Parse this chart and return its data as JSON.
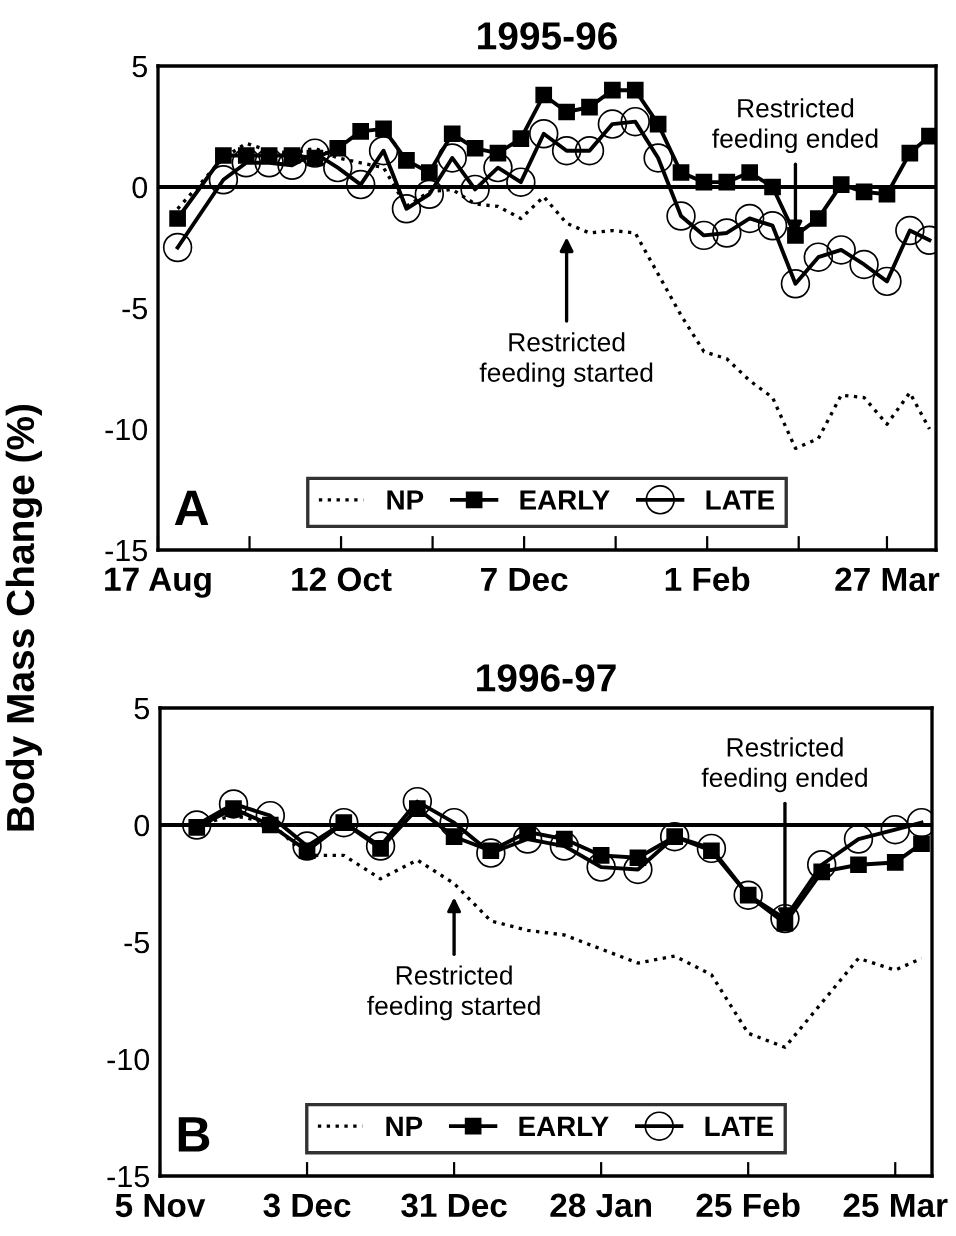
{
  "chart_data": [
    {
      "type": "line",
      "title": "1995-96",
      "ylabel": "Body Mass Change (%)",
      "x": [
        "1995-08-23",
        "1995-09-06",
        "1995-09-13",
        "1995-09-20",
        "1995-09-27",
        "1995-10-04",
        "1995-10-11",
        "1995-10-18",
        "1995-10-25",
        "1995-11-01",
        "1995-11-08",
        "1995-11-15",
        "1995-11-22",
        "1995-11-29",
        "1995-12-06",
        "1995-12-13",
        "1995-12-20",
        "1995-12-27",
        "1996-01-03",
        "1996-01-10",
        "1996-01-17",
        "1996-01-24",
        "1996-01-31",
        "1996-02-07",
        "1996-02-14",
        "1996-02-21",
        "1996-02-28",
        "1996-03-06",
        "1996-03-13",
        "1996-03-20",
        "1996-03-27",
        "1996-04-03",
        "1996-04-09"
      ],
      "series": [
        {
          "name": "NP",
          "color": "#000000",
          "line_style": "dotted",
          "marker": "none",
          "values": [
            -0.9,
            1.2,
            1.8,
            1.5,
            1.4,
            1.6,
            1.2,
            1.0,
            0.8,
            -0.8,
            -0.2,
            -0.1,
            -0.7,
            -0.8,
            -1.3,
            -0.4,
            -1.5,
            -1.9,
            -1.8,
            -1.9,
            -3.6,
            -5.3,
            -6.8,
            -7.1,
            -8.0,
            -8.7,
            -10.8,
            -10.4,
            -8.6,
            -8.7,
            -9.8,
            -8.5,
            -10.0
          ]
        },
        {
          "name": "EARLY",
          "color": "#000000",
          "line_style": "solid",
          "marker": "square",
          "values": [
            -1.3,
            1.3,
            1.3,
            1.3,
            1.3,
            1.2,
            1.6,
            2.3,
            2.4,
            1.1,
            0.6,
            2.2,
            1.6,
            1.4,
            2.0,
            3.8,
            3.1,
            3.3,
            4.0,
            4.0,
            2.6,
            0.6,
            0.2,
            0.2,
            0.6,
            0,
            -2.0,
            -1.3,
            0.1,
            -0.2,
            -0.3,
            1.4,
            2.1
          ]
        },
        {
          "name": "LATE",
          "color": "#000000",
          "line_style": "solid",
          "marker": "circle",
          "values": [
            -2.5,
            0.3,
            1.0,
            1.0,
            0.9,
            1.4,
            0.8,
            0.1,
            1.5,
            -0.9,
            -0.3,
            1.2,
            -0.1,
            0.8,
            0.2,
            2.2,
            1.5,
            1.5,
            2.6,
            2.7,
            1.2,
            -1.2,
            -2.0,
            -1.9,
            -1.3,
            -1.6,
            -4.0,
            -2.9,
            -2.6,
            -3.2,
            -3.9,
            -1.8,
            -2.2
          ]
        }
      ],
      "xlim": [
        "1995-08-17",
        "1996-04-11"
      ],
      "xticks": [
        {
          "value": "1995-08-17",
          "label": "17 Aug"
        },
        {
          "value": "1995-09-14",
          "label": null
        },
        {
          "value": "1995-10-12",
          "label": "12 Oct"
        },
        {
          "value": "1995-11-09",
          "label": null
        },
        {
          "value": "1995-12-07",
          "label": "7 Dec"
        },
        {
          "value": "1996-01-04",
          "label": null
        },
        {
          "value": "1996-02-01",
          "label": "1 Feb"
        },
        {
          "value": "1996-02-29",
          "label": null
        },
        {
          "value": "1996-03-27",
          "label": "27 Mar"
        }
      ],
      "ylim": [
        -15,
        5
      ],
      "yticks": [
        -15,
        -10,
        -5,
        0,
        5
      ],
      "ref_lines": [
        {
          "axis": "y",
          "value": 0
        }
      ],
      "annotations": [
        {
          "text": "Restricted\nfeeding started",
          "x": "1995-12-20",
          "y": -1.5
        },
        {
          "text": "Restricted\nfeeding ended",
          "x": "1996-02-28",
          "y": -2.0
        },
        "A"
      ],
      "legend": "bottom",
      "grid": false
    },
    {
      "type": "line",
      "title": "1996-97",
      "x": [
        "1996-11-12",
        "1996-11-19",
        "1996-11-26",
        "1996-12-03",
        "1996-12-10",
        "1996-12-17",
        "1996-12-24",
        "1996-12-31",
        "1997-01-07",
        "1997-01-14",
        "1997-01-21",
        "1997-01-28",
        "1997-02-04",
        "1997-02-11",
        "1997-02-18",
        "1997-02-25",
        "1997-03-04",
        "1997-03-11",
        "1997-03-18",
        "1997-03-25",
        "1997-03-30"
      ],
      "series": [
        {
          "name": "NP",
          "color": "#000000",
          "line_style": "dotted",
          "marker": "none",
          "values": [
            0,
            0.4,
            0.1,
            -1.3,
            -1.3,
            -2.3,
            -1.5,
            -2.5,
            -4.1,
            -4.5,
            -4.7,
            -5.3,
            -5.9,
            -5.6,
            -6.4,
            -8.9,
            -9.5,
            -7.6,
            -5.7,
            -6.2,
            -5.7
          ]
        },
        {
          "name": "EARLY",
          "color": "#000000",
          "line_style": "solid",
          "marker": "square",
          "values": [
            -0.1,
            0.7,
            0,
            -1.1,
            0.1,
            -1.0,
            0.7,
            -0.5,
            -1.1,
            -0.3,
            -0.6,
            -1.3,
            -1.4,
            -0.5,
            -1.1,
            -3.0,
            -4.2,
            -2.0,
            -1.7,
            -1.6,
            -0.8
          ]
        },
        {
          "name": "LATE",
          "color": "#000000",
          "line_style": "solid",
          "marker": "circle",
          "values": [
            0,
            0.9,
            0.4,
            -0.9,
            0.1,
            -0.9,
            1.0,
            0.1,
            -1.2,
            -0.6,
            -0.9,
            -1.8,
            -1.9,
            -0.5,
            -1.0,
            -3.0,
            -4.0,
            -1.7,
            -0.6,
            -0.2,
            0.1
          ]
        }
      ],
      "xlim": [
        "1996-11-05",
        "1997-04-01"
      ],
      "xticks": [
        {
          "value": "1996-11-05",
          "label": "5 Nov"
        },
        {
          "value": "1996-12-03",
          "label": "3 Dec"
        },
        {
          "value": "1996-12-31",
          "label": "31 Dec"
        },
        {
          "value": "1997-01-28",
          "label": "28 Jan"
        },
        {
          "value": "1997-02-25",
          "label": "25 Feb"
        },
        {
          "value": "1997-03-25",
          "label": "25 Mar"
        }
      ],
      "ylim": [
        -15,
        5
      ],
      "yticks": [
        -15,
        -10,
        -5,
        0,
        5
      ],
      "ref_lines": [
        {
          "axis": "y",
          "value": 0
        }
      ],
      "annotations": [
        {
          "text": "Restricted\nfeeding started",
          "x": "1996-12-31",
          "y": -2.5
        },
        {
          "text": "Restricted\nfeeding ended",
          "x": "1997-03-04",
          "y": -4.2
        },
        "B"
      ],
      "legend": "bottom",
      "grid": false
    }
  ]
}
